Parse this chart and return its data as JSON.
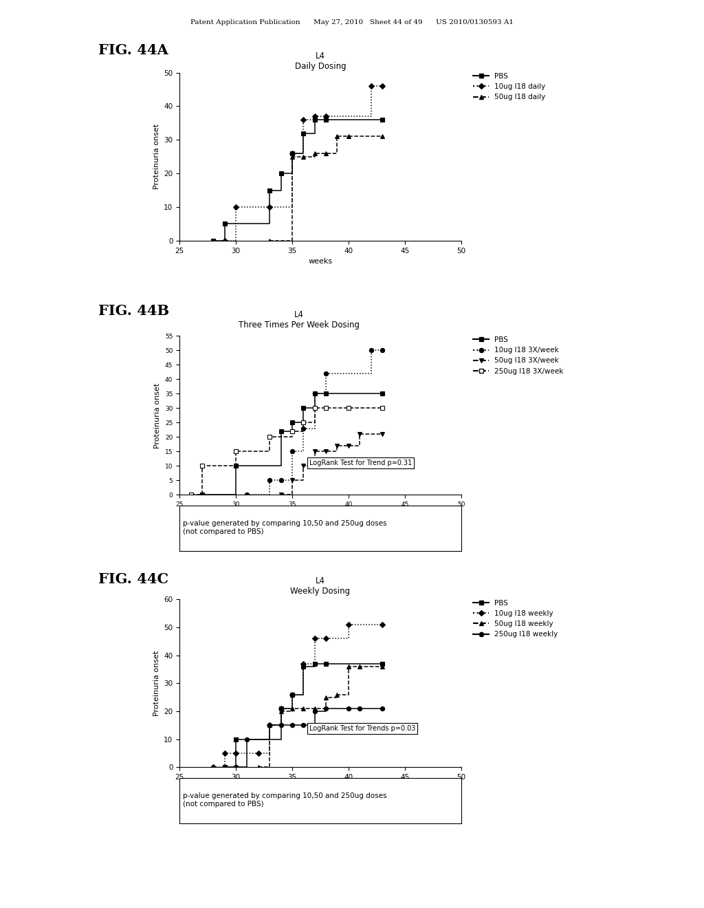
{
  "fig_a": {
    "title_line1": "L4",
    "title_line2": "Daily Dosing",
    "fig_label": "FIG. 44A",
    "xlabel": "weeks",
    "ylabel": "Proteinuria onset",
    "xlim": [
      25,
      50
    ],
    "ylim": [
      0,
      50
    ],
    "yticks": [
      0,
      10,
      20,
      30,
      40,
      50
    ],
    "xticks": [
      25,
      30,
      35,
      40,
      45,
      50
    ],
    "series": [
      {
        "label": "PBS",
        "x": [
          28,
          29,
          33,
          34,
          35,
          36,
          37,
          38,
          43
        ],
        "y": [
          0,
          5,
          15,
          20,
          26,
          32,
          36,
          36,
          36
        ],
        "style": "solid",
        "marker": "s",
        "color": "#000000",
        "mfc": "black"
      },
      {
        "label": "10ug I18 daily",
        "x": [
          29,
          30,
          33,
          35,
          36,
          37,
          38,
          42,
          43
        ],
        "y": [
          0,
          10,
          10,
          26,
          36,
          37,
          37,
          46,
          46
        ],
        "style": "dotted",
        "marker": "D",
        "color": "#000000",
        "mfc": "black"
      },
      {
        "label": "50ug I18 daily",
        "x": [
          33,
          35,
          36,
          37,
          38,
          39,
          40,
          43
        ],
        "y": [
          0,
          25,
          25,
          26,
          26,
          31,
          31,
          31
        ],
        "style": "dashed",
        "marker": "^",
        "color": "#000000",
        "mfc": "black"
      }
    ],
    "legend_labels": [
      "PBS",
      "10ug I18 daily",
      "50ug I18 daily"
    ],
    "legend_styles": [
      "solid",
      "dotted",
      "dashed"
    ],
    "legend_markers": [
      "s",
      "D",
      "^"
    ],
    "legend_mfc": [
      "black",
      "black",
      "black"
    ]
  },
  "fig_b": {
    "title_line1": "L4",
    "title_line2": "Three Times Per Week Dosing",
    "fig_label": "FIG. 44B",
    "xlabel": "weeks",
    "ylabel": "Proteinuria onset",
    "xlim": [
      25,
      50
    ],
    "ylim": [
      0,
      55
    ],
    "yticks": [
      0,
      5,
      10,
      15,
      20,
      25,
      30,
      35,
      40,
      45,
      50,
      55
    ],
    "xticks": [
      25,
      30,
      35,
      40,
      45,
      50
    ],
    "annotation": "LogRank Test for Trend p=0.31",
    "footnote": "p-value generated by comparing 10,50 and 250ug doses\n(not compared to PBS)",
    "series": [
      {
        "label": "PBS",
        "x": [
          27,
          30,
          34,
          35,
          36,
          37,
          38,
          43
        ],
        "y": [
          0,
          10,
          22,
          25,
          30,
          35,
          35,
          35
        ],
        "style": "solid",
        "marker": "s",
        "color": "#000000",
        "mfc": "black"
      },
      {
        "label": "10ug I18 3X/week",
        "x": [
          31,
          33,
          34,
          35,
          36,
          37,
          38,
          42,
          43
        ],
        "y": [
          0,
          5,
          5,
          15,
          23,
          35,
          42,
          50,
          50
        ],
        "style": "dotted",
        "marker": "o",
        "color": "#000000",
        "mfc": "black"
      },
      {
        "label": "50ug I18 3X/week",
        "x": [
          34,
          35,
          36,
          37,
          38,
          39,
          40,
          41,
          43
        ],
        "y": [
          0,
          5,
          10,
          15,
          15,
          17,
          17,
          21,
          21
        ],
        "style": "dashed",
        "marker": "v",
        "color": "#000000",
        "mfc": "black"
      },
      {
        "label": "250ug I18 3X/week",
        "x": [
          26,
          27,
          30,
          33,
          35,
          36,
          37,
          38,
          40,
          43
        ],
        "y": [
          0,
          10,
          15,
          20,
          22,
          25,
          30,
          30,
          30,
          30
        ],
        "style": "dashed",
        "marker": "s",
        "color": "#000000",
        "mfc": "white"
      }
    ],
    "legend_labels": [
      "PBS",
      "10ug I18 3X/week",
      "50ug I18 3X/week",
      "250ug I18 3X/week"
    ],
    "legend_styles": [
      "solid",
      "dotted",
      "dashed",
      "dashed"
    ],
    "legend_markers": [
      "s",
      "o",
      "v",
      "s"
    ],
    "legend_mfc": [
      "black",
      "black",
      "black",
      "white"
    ]
  },
  "fig_c": {
    "title_line1": "L4",
    "title_line2": "Weekly Dosing",
    "fig_label": "FIG. 44C",
    "xlabel": "weeks",
    "ylabel": "Proteinuria onset",
    "xlim": [
      25,
      50
    ],
    "ylim": [
      0,
      60
    ],
    "yticks": [
      0,
      10,
      20,
      30,
      40,
      50,
      60
    ],
    "xticks": [
      25,
      30,
      35,
      40,
      45,
      50
    ],
    "annotation": "LogRank Test for Trends p=0.03",
    "footnote": "p-value generated by comparing 10,50 and 250ug doses\n(not compared to PBS)",
    "series": [
      {
        "label": "PBS",
        "x": [
          29,
          30,
          34,
          35,
          36,
          37,
          38,
          43
        ],
        "y": [
          0,
          10,
          21,
          26,
          36,
          37,
          37,
          37
        ],
        "style": "solid",
        "marker": "s",
        "color": "#000000",
        "mfc": "black"
      },
      {
        "label": "10ug I18 weekly",
        "x": [
          28,
          29,
          30,
          32,
          33,
          34,
          35,
          36,
          37,
          38,
          40,
          43
        ],
        "y": [
          0,
          5,
          5,
          5,
          15,
          21,
          26,
          37,
          46,
          46,
          51,
          51
        ],
        "style": "dotted",
        "marker": "D",
        "color": "#000000",
        "mfc": "black"
      },
      {
        "label": "50ug I18 weekly",
        "x": [
          32,
          33,
          34,
          35,
          36,
          37,
          38,
          39,
          40,
          41,
          43
        ],
        "y": [
          0,
          15,
          20,
          21,
          21,
          21,
          25,
          26,
          36,
          36,
          36
        ],
        "style": "dashed",
        "marker": "^",
        "color": "#000000",
        "mfc": "black"
      },
      {
        "label": "250ug I18 weekly",
        "x": [
          30,
          31,
          33,
          34,
          35,
          36,
          37,
          38,
          40,
          41,
          43
        ],
        "y": [
          0,
          10,
          15,
          15,
          15,
          15,
          20,
          21,
          21,
          21,
          21
        ],
        "style": "solid",
        "marker": "o",
        "color": "#000000",
        "mfc": "black"
      }
    ],
    "legend_labels": [
      "PBS",
      "10ug I18 weekly",
      "50ug I18 weekly",
      "250ug I18 weekly"
    ],
    "legend_styles": [
      "solid",
      "dotted",
      "dashed",
      "solid"
    ],
    "legend_markers": [
      "s",
      "D",
      "^",
      "o"
    ],
    "legend_mfc": [
      "black",
      "black",
      "black",
      "black"
    ]
  },
  "header": "Patent Application Publication      May 27, 2010   Sheet 44 of 49      US 2010/0130593 A1"
}
